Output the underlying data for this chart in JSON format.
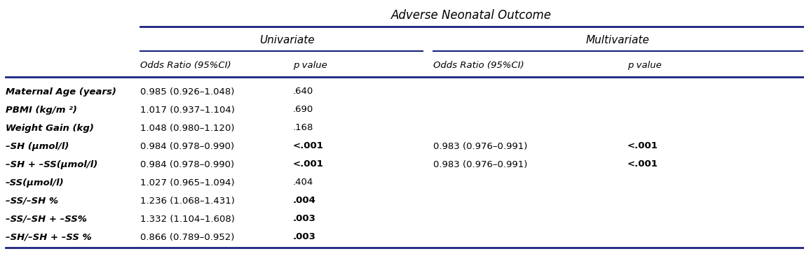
{
  "title": "Adverse Neonatal Outcome",
  "group_headers": [
    "Univariate",
    "Multivariate"
  ],
  "col_headers_uni": [
    "Odds Ratio (95%CI)",
    "p value"
  ],
  "col_headers_multi": [
    "Odds Ratio (95%CI)",
    "p value"
  ],
  "rows": [
    {
      "label": "Maternal Age (years)",
      "uni_or": "0.985 (0.926–1.048)",
      "uni_p": ".640",
      "uni_p_bold": false,
      "multi_or": "",
      "multi_p": "",
      "multi_p_bold": false
    },
    {
      "label": "PBMI (kg/m ²)",
      "uni_or": "1.017 (0.937–1.104)",
      "uni_p": ".690",
      "uni_p_bold": false,
      "multi_or": "",
      "multi_p": "",
      "multi_p_bold": false
    },
    {
      "label": "Weight Gain (kg)",
      "uni_or": "1.048 (0.980–1.120)",
      "uni_p": ".168",
      "uni_p_bold": false,
      "multi_or": "",
      "multi_p": "",
      "multi_p_bold": false
    },
    {
      "label": "–SH (μmol/l)",
      "uni_or": "0.984 (0.978–0.990)",
      "uni_p": "<.001",
      "uni_p_bold": true,
      "multi_or": "0.983 (0.976–0.991)",
      "multi_p": "<.001",
      "multi_p_bold": true
    },
    {
      "label": "–SH + –SS(μmol/l)",
      "uni_or": "0.984 (0.978–0.990)",
      "uni_p": "<.001",
      "uni_p_bold": true,
      "multi_or": "0.983 (0.976–0.991)",
      "multi_p": "<.001",
      "multi_p_bold": true
    },
    {
      "label": "–SS(μmol/l)",
      "uni_or": "1.027 (0.965–1.094)",
      "uni_p": ".404",
      "uni_p_bold": false,
      "multi_or": "",
      "multi_p": "",
      "multi_p_bold": false
    },
    {
      "label": "–SS/–SH %",
      "uni_or": "1.236 (1.068–1.431)",
      "uni_p": ".004",
      "uni_p_bold": true,
      "multi_or": "",
      "multi_p": "",
      "multi_p_bold": false
    },
    {
      "label": "–SS/–SH + –SS%",
      "uni_or": "1.332 (1.104–1.608)",
      "uni_p": ".003",
      "uni_p_bold": true,
      "multi_or": "",
      "multi_p": "",
      "multi_p_bold": false
    },
    {
      "label": "–SH/–SH + –SS %",
      "uni_or": "0.866 (0.789–0.952)",
      "uni_p": ".003",
      "uni_p_bold": true,
      "multi_or": "",
      "multi_p": "",
      "multi_p_bold": false
    }
  ],
  "line_color": "#1a237e",
  "bg_color": "#ffffff",
  "text_color": "#000000",
  "figsize": [
    11.54,
    3.76
  ],
  "dpi": 100
}
